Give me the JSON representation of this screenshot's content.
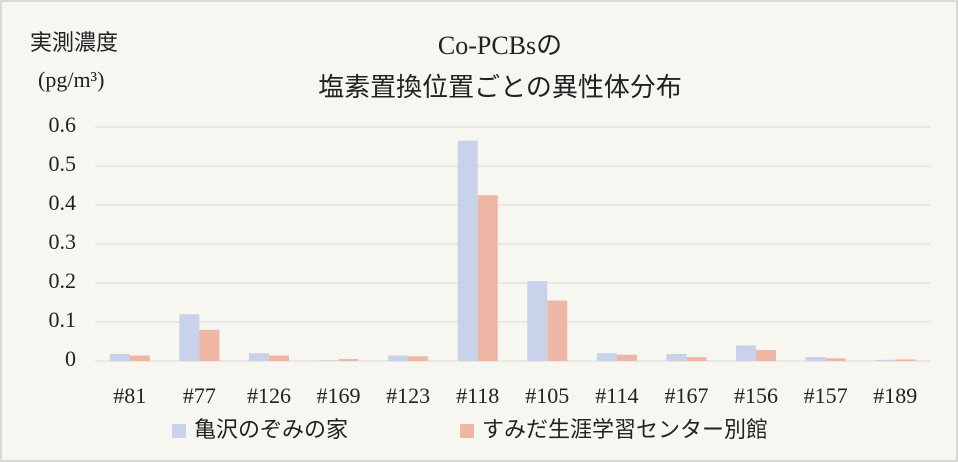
{
  "chart_data": {
    "type": "bar",
    "title": [
      "Co-PCBsの",
      "塩素置換位置ごとの異性体分布"
    ],
    "y_label": [
      "実測濃度",
      "(pg/m³)"
    ],
    "categories": [
      "#81",
      "#77",
      "#126",
      "#169",
      "#123",
      "#118",
      "#105",
      "#114",
      "#167",
      "#156",
      "#157",
      "#189"
    ],
    "series": [
      {
        "name": "亀沢のぞみの家",
        "color": "#c8d2ea",
        "values": [
          0.018,
          0.12,
          0.02,
          0.002,
          0.014,
          0.565,
          0.205,
          0.02,
          0.018,
          0.04,
          0.01,
          0.003
        ]
      },
      {
        "name": "すみだ生涯学習センター別館",
        "color": "#eeb6a5",
        "values": [
          0.014,
          0.08,
          0.014,
          0.005,
          0.012,
          0.425,
          0.155,
          0.016,
          0.01,
          0.028,
          0.007,
          0.004
        ]
      }
    ],
    "ylim": [
      0,
      0.6
    ],
    "yticks": [
      0,
      0.1,
      0.2,
      0.3,
      0.4,
      0.5,
      0.6
    ],
    "grid": true
  }
}
